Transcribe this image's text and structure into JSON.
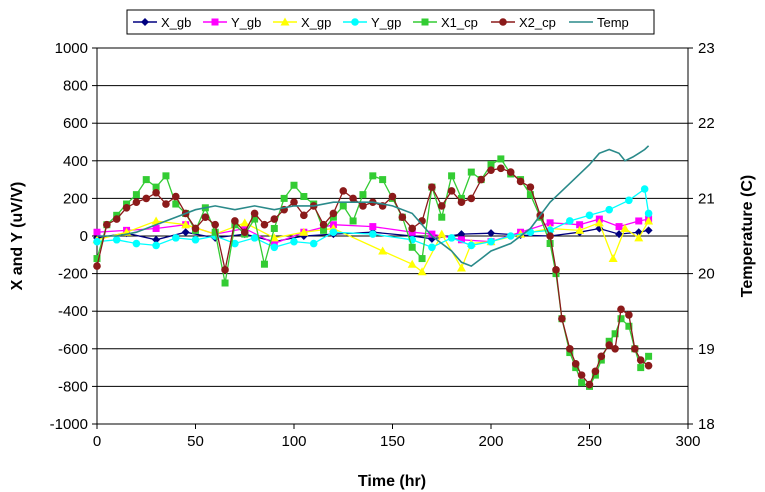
{
  "chart_data": {
    "type": "line",
    "xlabel": "Time (hr)",
    "ylabel": "X and Y (uV/V)",
    "y2label": "Temperature (C)",
    "xlim": [
      0,
      300
    ],
    "ylim": [
      -1000,
      1000
    ],
    "y2lim": [
      18,
      23
    ],
    "xticks": [
      "0",
      "50",
      "100",
      "150",
      "200",
      "250",
      "300"
    ],
    "yticks": [
      "1000",
      "800",
      "600",
      "400",
      "200",
      "0",
      "-200",
      "-400",
      "-600",
      "-800",
      "-1000"
    ],
    "y2ticks": [
      "23",
      "22",
      "21",
      "20",
      "19",
      "18"
    ],
    "grid": "horizontal",
    "legend_position": "top",
    "series": [
      {
        "name": "X_gb",
        "color": "#000080",
        "marker": "diamond",
        "axis": "left",
        "x": [
          0,
          15,
          30,
          45,
          60,
          75,
          90,
          105,
          120,
          140,
          160,
          170,
          185,
          200,
          215,
          230,
          245,
          255,
          265,
          275,
          280
        ],
        "y": [
          -10,
          15,
          -20,
          20,
          -10,
          10,
          -30,
          0,
          10,
          20,
          0,
          -15,
          10,
          15,
          5,
          0,
          20,
          40,
          10,
          20,
          30
        ]
      },
      {
        "name": "Y_gb",
        "color": "#ff00ff",
        "marker": "square",
        "axis": "left",
        "x": [
          0,
          15,
          30,
          45,
          60,
          75,
          90,
          105,
          120,
          140,
          160,
          170,
          185,
          200,
          215,
          230,
          245,
          255,
          265,
          275,
          280
        ],
        "y": [
          20,
          30,
          40,
          60,
          10,
          40,
          -40,
          20,
          60,
          50,
          20,
          10,
          -20,
          -30,
          20,
          70,
          60,
          90,
          50,
          80,
          90
        ]
      },
      {
        "name": "X_gp",
        "color": "#ffff00",
        "marker": "triangle",
        "axis": "left",
        "x": [
          0,
          15,
          30,
          45,
          60,
          75,
          90,
          105,
          120,
          145,
          160,
          165,
          175,
          185,
          190,
          200,
          215,
          230,
          245,
          255,
          262,
          268,
          275,
          280
        ],
        "y": [
          -20,
          20,
          80,
          60,
          10,
          70,
          -10,
          20,
          40,
          -80,
          -150,
          -190,
          10,
          -170,
          -40,
          -30,
          10,
          40,
          30,
          70,
          -120,
          40,
          -10,
          80
        ]
      },
      {
        "name": "Y_gp",
        "color": "#00ffff",
        "marker": "circle",
        "axis": "left",
        "x": [
          0,
          10,
          20,
          30,
          40,
          50,
          60,
          70,
          80,
          90,
          100,
          110,
          120,
          140,
          160,
          170,
          180,
          190,
          200,
          210,
          220,
          230,
          240,
          250,
          260,
          270,
          278,
          280
        ],
        "y": [
          -30,
          -20,
          -40,
          -50,
          -10,
          -20,
          0,
          -40,
          -10,
          -60,
          -30,
          -40,
          20,
          10,
          -20,
          -60,
          -10,
          -50,
          -30,
          0,
          20,
          30,
          80,
          110,
          140,
          190,
          250,
          120
        ]
      },
      {
        "name": "X1_cp",
        "color": "#33cc33",
        "marker": "square",
        "axis": "left",
        "x": [
          0,
          5,
          10,
          15,
          20,
          25,
          30,
          35,
          40,
          45,
          50,
          55,
          60,
          65,
          70,
          75,
          80,
          85,
          90,
          95,
          100,
          105,
          110,
          115,
          120,
          125,
          130,
          135,
          140,
          145,
          150,
          155,
          160,
          165,
          170,
          175,
          180,
          185,
          190,
          195,
          200,
          205,
          210,
          215,
          220,
          225,
          230,
          233,
          236,
          240,
          243,
          246,
          250,
          253,
          256,
          260,
          263,
          266,
          270,
          273,
          276,
          280
        ],
        "y": [
          -120,
          60,
          110,
          170,
          220,
          300,
          260,
          320,
          170,
          120,
          30,
          150,
          20,
          -250,
          60,
          10,
          90,
          -150,
          40,
          200,
          270,
          210,
          170,
          30,
          100,
          160,
          80,
          220,
          320,
          300,
          200,
          100,
          -60,
          -120,
          260,
          100,
          320,
          200,
          340,
          300,
          380,
          410,
          330,
          300,
          220,
          100,
          -40,
          -200,
          -440,
          -620,
          -700,
          -780,
          -800,
          -740,
          -660,
          -560,
          -520,
          -440,
          -480,
          -600,
          -700,
          -640
        ]
      },
      {
        "name": "X2_cp",
        "color": "#8b1a1a",
        "marker": "circle",
        "axis": "left",
        "x": [
          0,
          5,
          10,
          15,
          20,
          25,
          30,
          35,
          40,
          45,
          50,
          55,
          60,
          65,
          70,
          75,
          80,
          85,
          90,
          95,
          100,
          105,
          110,
          115,
          120,
          125,
          130,
          135,
          140,
          145,
          150,
          155,
          160,
          165,
          170,
          175,
          180,
          185,
          190,
          195,
          200,
          205,
          210,
          215,
          220,
          225,
          230,
          233,
          236,
          240,
          243,
          246,
          250,
          253,
          256,
          260,
          263,
          266,
          270,
          273,
          276,
          280
        ],
        "y": [
          -160,
          60,
          90,
          150,
          180,
          200,
          230,
          170,
          210,
          120,
          40,
          100,
          60,
          -180,
          80,
          20,
          120,
          60,
          90,
          140,
          180,
          110,
          160,
          60,
          120,
          240,
          200,
          160,
          180,
          160,
          210,
          100,
          40,
          80,
          260,
          160,
          240,
          180,
          200,
          300,
          350,
          360,
          340,
          290,
          260,
          110,
          0,
          -180,
          -440,
          -600,
          -680,
          -740,
          -790,
          -720,
          -640,
          -580,
          -600,
          -390,
          -420,
          -600,
          -660,
          -690
        ]
      },
      {
        "name": "Temp",
        "color": "#2a8a8a",
        "marker": "none",
        "axis": "right",
        "x": [
          0,
          10,
          20,
          30,
          40,
          50,
          60,
          70,
          80,
          90,
          100,
          110,
          120,
          130,
          140,
          150,
          160,
          170,
          180,
          185,
          190,
          195,
          200,
          210,
          220,
          230,
          240,
          250,
          255,
          260,
          265,
          268,
          272,
          275,
          278,
          280
        ],
        "y": [
          20.5,
          20.5,
          20.55,
          20.65,
          20.75,
          20.85,
          20.9,
          20.85,
          20.9,
          20.85,
          20.9,
          20.9,
          20.95,
          20.95,
          20.95,
          20.9,
          20.8,
          20.5,
          20.3,
          20.15,
          20.1,
          20.2,
          20.3,
          20.4,
          20.6,
          20.95,
          21.2,
          21.45,
          21.6,
          21.65,
          21.6,
          21.5,
          21.55,
          21.6,
          21.65,
          21.7
        ]
      }
    ]
  }
}
